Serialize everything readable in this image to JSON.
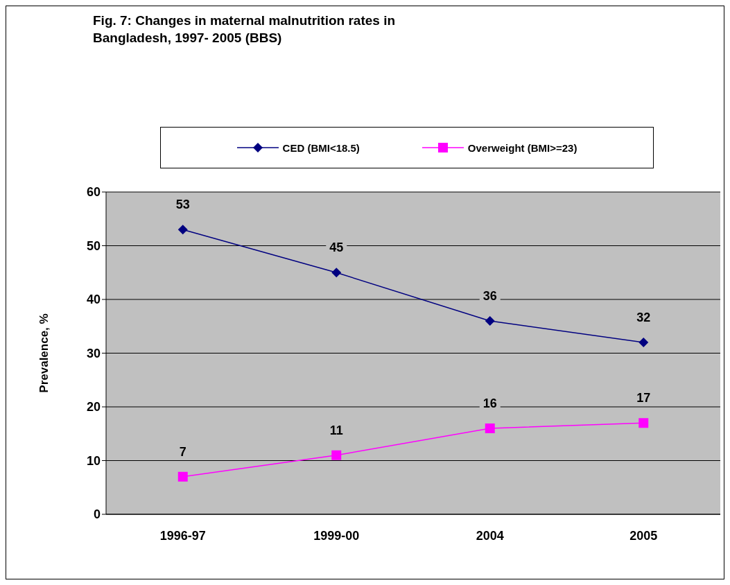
{
  "chart_data": {
    "type": "line",
    "title": "Fig. 7: Changes in maternal malnutrition rates in Bangladesh, 1997- 2005 (BBS)",
    "ylabel": "Prevalence, %",
    "categories": [
      "1996-97",
      "1999-00",
      "2004",
      "2005"
    ],
    "series": [
      {
        "name": "CED (BMI<18.5)",
        "color": "#000080",
        "values": [
          53,
          45,
          36,
          32
        ],
        "marker": "diamond"
      },
      {
        "name": "Overweight (BMI>=23)",
        "color": "#ff00ff",
        "values": [
          7,
          11,
          16,
          17
        ],
        "marker": "square"
      }
    ],
    "ylim": [
      0,
      60
    ],
    "yticks": [
      0,
      10,
      20,
      30,
      40,
      50,
      60
    ],
    "grid": "y",
    "legend": "top",
    "data_labels": true,
    "line_style": "solid"
  }
}
